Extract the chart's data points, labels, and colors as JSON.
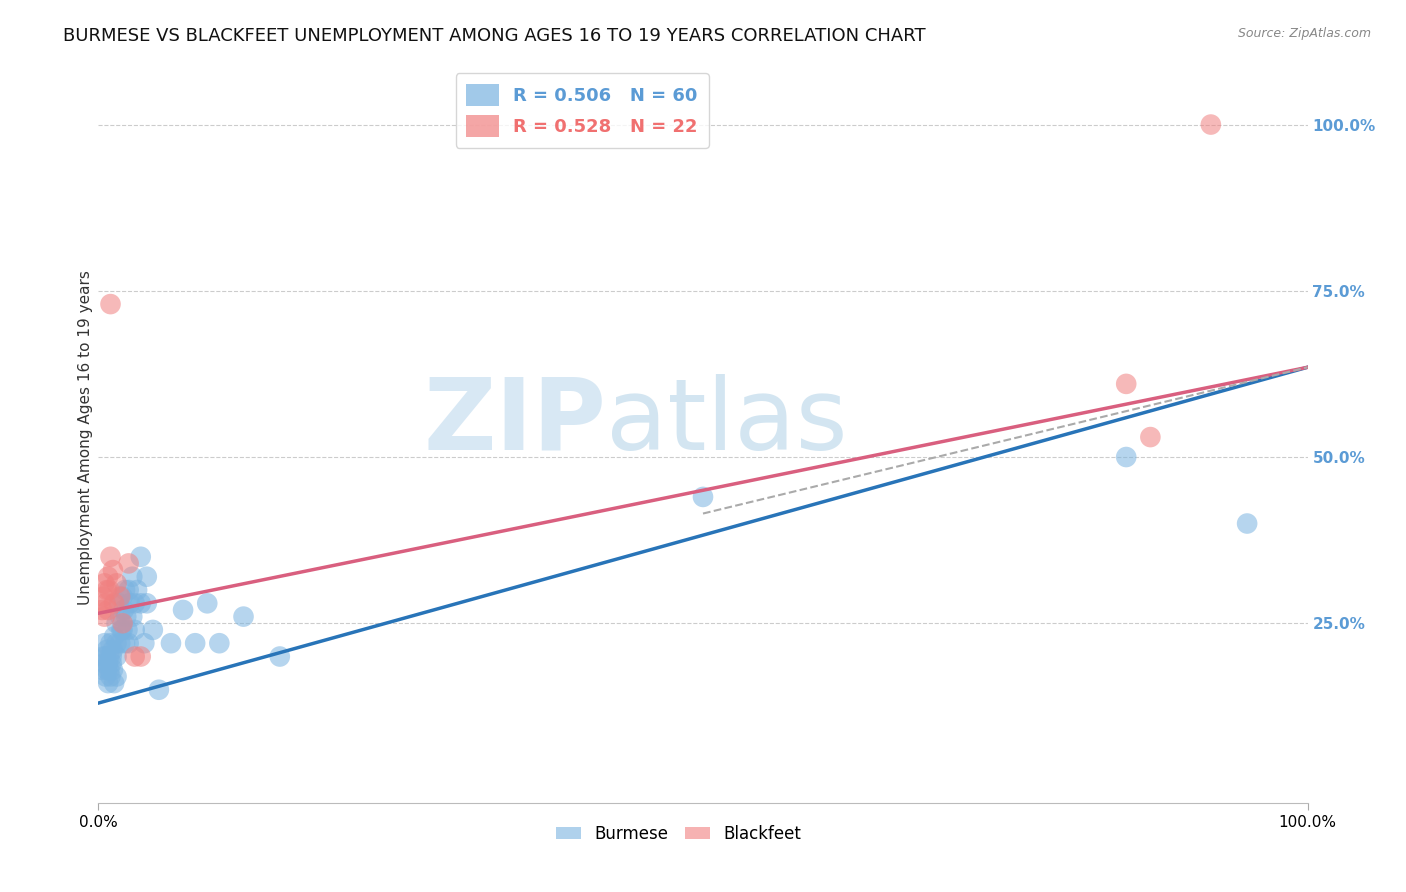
{
  "title": "BURMESE VS BLACKFEET UNEMPLOYMENT AMONG AGES 16 TO 19 YEARS CORRELATION CHART",
  "source": "Source: ZipAtlas.com",
  "ylabel": "Unemployment Among Ages 16 to 19 years",
  "xlim": [
    0,
    1.0
  ],
  "ylim": [
    -0.02,
    1.08
  ],
  "ytick_positions": [
    0.25,
    0.5,
    0.75,
    1.0
  ],
  "xtick_positions": [
    0.0,
    1.0
  ],
  "legend_entries": [
    {
      "label": "R = 0.506   N = 60",
      "color": "#5b9bd5"
    },
    {
      "label": "R = 0.528   N = 22",
      "color": "#f07070"
    }
  ],
  "watermark_zip": "ZIP",
  "watermark_atlas": "atlas",
  "burmese_color": "#7ab3e0",
  "blackfeet_color": "#f08080",
  "burmese_scatter": [
    [
      0.003,
      0.18
    ],
    [
      0.004,
      0.2
    ],
    [
      0.005,
      0.19
    ],
    [
      0.005,
      0.22
    ],
    [
      0.006,
      0.17
    ],
    [
      0.006,
      0.2
    ],
    [
      0.007,
      0.18
    ],
    [
      0.007,
      0.21
    ],
    [
      0.008,
      0.19
    ],
    [
      0.008,
      0.16
    ],
    [
      0.009,
      0.2
    ],
    [
      0.009,
      0.18
    ],
    [
      0.01,
      0.22
    ],
    [
      0.01,
      0.17
    ],
    [
      0.011,
      0.2
    ],
    [
      0.011,
      0.19
    ],
    [
      0.012,
      0.21
    ],
    [
      0.012,
      0.18
    ],
    [
      0.013,
      0.23
    ],
    [
      0.013,
      0.16
    ],
    [
      0.015,
      0.25
    ],
    [
      0.015,
      0.2
    ],
    [
      0.015,
      0.17
    ],
    [
      0.015,
      0.22
    ],
    [
      0.017,
      0.28
    ],
    [
      0.018,
      0.22
    ],
    [
      0.018,
      0.26
    ],
    [
      0.019,
      0.24
    ],
    [
      0.02,
      0.29
    ],
    [
      0.02,
      0.24
    ],
    [
      0.021,
      0.27
    ],
    [
      0.022,
      0.3
    ],
    [
      0.022,
      0.22
    ],
    [
      0.023,
      0.26
    ],
    [
      0.024,
      0.24
    ],
    [
      0.025,
      0.22
    ],
    [
      0.025,
      0.3
    ],
    [
      0.026,
      0.28
    ],
    [
      0.028,
      0.32
    ],
    [
      0.028,
      0.26
    ],
    [
      0.03,
      0.28
    ],
    [
      0.03,
      0.24
    ],
    [
      0.032,
      0.3
    ],
    [
      0.035,
      0.35
    ],
    [
      0.035,
      0.28
    ],
    [
      0.038,
      0.22
    ],
    [
      0.04,
      0.32
    ],
    [
      0.04,
      0.28
    ],
    [
      0.045,
      0.24
    ],
    [
      0.05,
      0.15
    ],
    [
      0.06,
      0.22
    ],
    [
      0.07,
      0.27
    ],
    [
      0.08,
      0.22
    ],
    [
      0.09,
      0.28
    ],
    [
      0.1,
      0.22
    ],
    [
      0.12,
      0.26
    ],
    [
      0.15,
      0.2
    ],
    [
      0.5,
      0.44
    ],
    [
      0.85,
      0.5
    ],
    [
      0.95,
      0.4
    ]
  ],
  "blackfeet_scatter": [
    [
      0.003,
      0.27
    ],
    [
      0.004,
      0.29
    ],
    [
      0.005,
      0.26
    ],
    [
      0.005,
      0.31
    ],
    [
      0.006,
      0.28
    ],
    [
      0.007,
      0.3
    ],
    [
      0.008,
      0.27
    ],
    [
      0.008,
      0.32
    ],
    [
      0.009,
      0.3
    ],
    [
      0.01,
      0.35
    ],
    [
      0.012,
      0.33
    ],
    [
      0.013,
      0.28
    ],
    [
      0.015,
      0.31
    ],
    [
      0.018,
      0.29
    ],
    [
      0.02,
      0.25
    ],
    [
      0.025,
      0.34
    ],
    [
      0.03,
      0.2
    ],
    [
      0.035,
      0.2
    ],
    [
      0.01,
      0.73
    ],
    [
      0.85,
      0.61
    ],
    [
      0.87,
      0.53
    ],
    [
      0.92,
      1.0
    ]
  ],
  "burmese_line": {
    "x0": 0.0,
    "y0": 0.13,
    "x1": 1.0,
    "y1": 0.635
  },
  "blackfeet_line": {
    "x0": 0.0,
    "y0": 0.265,
    "x1": 1.0,
    "y1": 0.635
  },
  "burmese_dash_line": {
    "x0": 0.5,
    "y0": 0.415,
    "x1": 1.0,
    "y1": 0.635
  },
  "burmese_line_color": "#2874b8",
  "blackfeet_line_color": "#d95f7f",
  "dash_color": "#aaaaaa",
  "background_color": "#ffffff",
  "grid_color": "#cccccc",
  "title_fontsize": 13,
  "axis_label_fontsize": 11,
  "tick_fontsize": 11,
  "right_tick_color": "#5b9bd5"
}
